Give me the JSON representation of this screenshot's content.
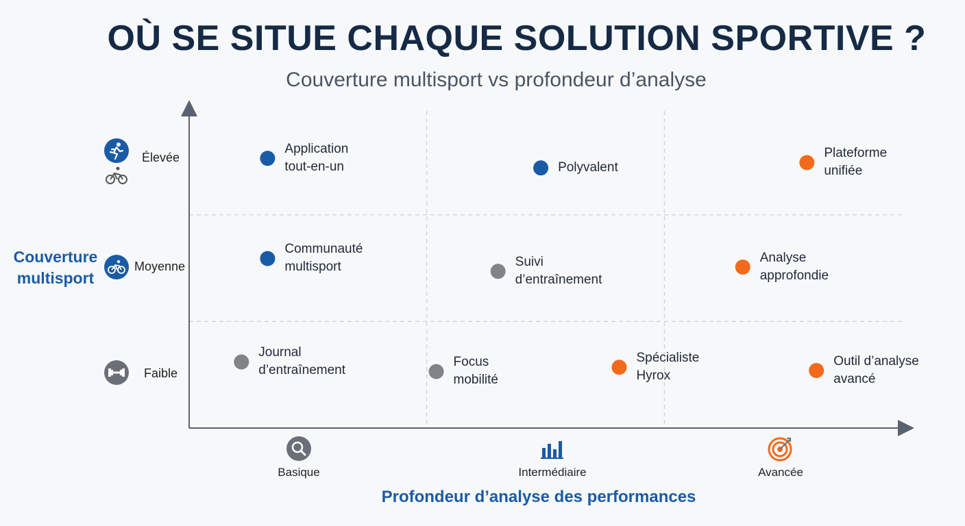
{
  "chart_data": {
    "type": "scatter",
    "title": "OÙ SE SITUE CHAQUE SOLUTION SPORTIVE ?",
    "subtitle": "Couverture multisport vs profondeur d’analyse",
    "xlabel": "Profondeur d’analyse des performances",
    "ylabel": "Couverture multisport",
    "x_categories": [
      "Basique",
      "Intermédiaire",
      "Avancée"
    ],
    "y_categories": [
      "Faible",
      "Moyenne",
      "Élevée"
    ],
    "xlim": [
      0,
      3
    ],
    "ylim": [
      0,
      3
    ],
    "grid": true,
    "colors": {
      "blue": "#1a5ba6",
      "gray": "#808489",
      "orange": "#f26a1b"
    },
    "points": [
      {
        "label_lines": [
          "Application",
          "tout-en-un"
        ],
        "x": 0.33,
        "y": 2.53,
        "color": "blue"
      },
      {
        "label_lines": [
          "Polyvalent"
        ],
        "x": 1.48,
        "y": 2.44,
        "color": "blue"
      },
      {
        "label_lines": [
          "Plateforme",
          "unifiée"
        ],
        "x": 2.6,
        "y": 2.49,
        "color": "orange"
      },
      {
        "label_lines": [
          "Communauté",
          "multisport"
        ],
        "x": 0.33,
        "y": 1.59,
        "color": "blue"
      },
      {
        "label_lines": [
          "Suivi",
          "d’entraînement"
        ],
        "x": 1.3,
        "y": 1.47,
        "color": "gray"
      },
      {
        "label_lines": [
          "Analyse",
          "approfondie"
        ],
        "x": 2.33,
        "y": 1.51,
        "color": "orange"
      },
      {
        "label_lines": [
          "Journal",
          "d’entraînement"
        ],
        "x": 0.22,
        "y": 0.62,
        "color": "gray"
      },
      {
        "label_lines": [
          "Focus",
          "mobilité"
        ],
        "x": 1.04,
        "y": 0.53,
        "color": "gray"
      },
      {
        "label_lines": [
          "Spécialiste",
          "Hyrox"
        ],
        "x": 1.81,
        "y": 0.57,
        "color": "orange"
      },
      {
        "label_lines": [
          "Outil d’analyse",
          "avancé"
        ],
        "x": 2.64,
        "y": 0.54,
        "color": "orange"
      }
    ]
  },
  "y_icons": {
    "high": [
      "runner-icon",
      "cyclist-icon"
    ],
    "mid": "cyclist-icon",
    "low": "dumbbell-icon"
  },
  "x_icons": [
    "magnifier-icon",
    "bar-chart-icon",
    "target-icon"
  ]
}
